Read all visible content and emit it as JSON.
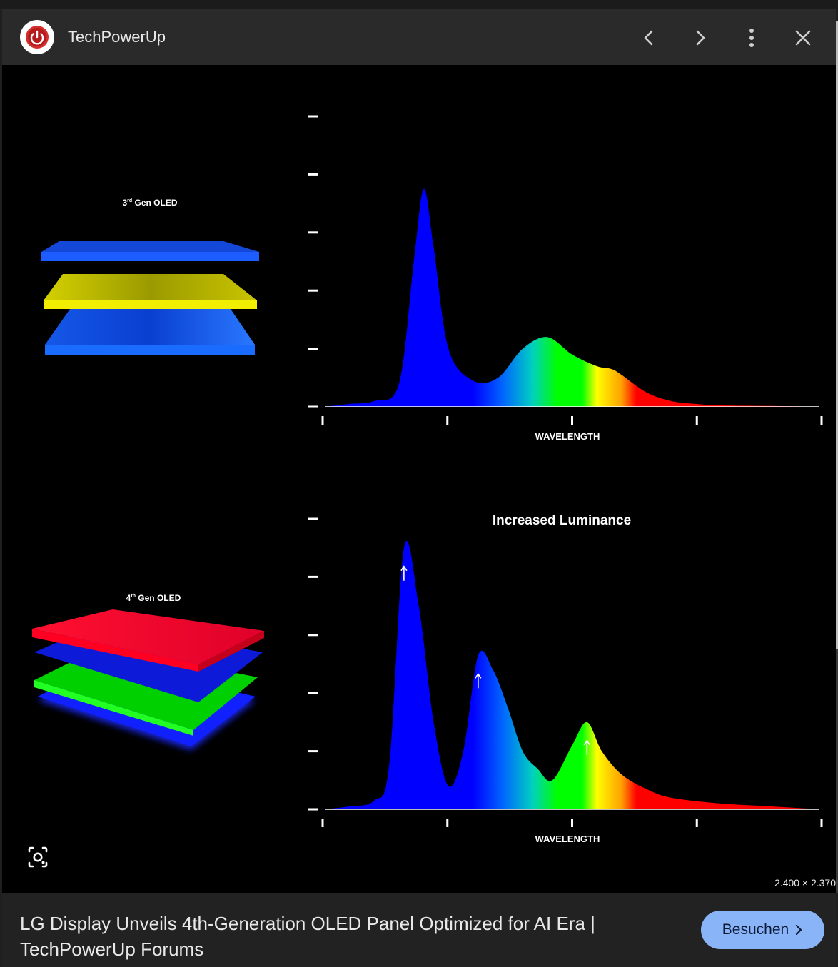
{
  "header": {
    "site_name": "TechPowerUp",
    "icons": {
      "logo": "power-icon",
      "prev": "chevron-left-icon",
      "next": "chevron-right-icon",
      "menu": "more-vert-icon",
      "close": "close-icon"
    }
  },
  "image": {
    "dimensions": "2.400 × 2.370",
    "panels": [
      {
        "label_base": "3",
        "label_sup": "rd",
        "label_rest": " Gen OLED",
        "xlabel": "WAVELENGTH",
        "annotation": ""
      },
      {
        "label_base": "4",
        "label_sup": "th",
        "label_rest": " Gen OLED",
        "xlabel": "WAVELENGTH",
        "annotation": "Increased Luminance"
      }
    ]
  },
  "chart_data": [
    {
      "type": "area",
      "title": "",
      "xlabel": "WAVELENGTH",
      "ylabel": "",
      "x_ticks": 5,
      "y_ticks": 6,
      "description_series": "spectrum",
      "x": [
        0,
        5,
        10,
        15,
        18,
        20,
        22,
        25,
        30,
        35,
        40,
        45,
        50,
        55,
        58,
        60,
        65,
        70,
        75,
        80,
        90,
        100
      ],
      "y": [
        0,
        1,
        2,
        8,
        50,
        75,
        55,
        20,
        9,
        10,
        20,
        24,
        18,
        14,
        13,
        11,
        5,
        2,
        1,
        0.5,
        0.3,
        0
      ],
      "ylim": [
        0,
        100
      ]
    },
    {
      "type": "area",
      "title": "",
      "xlabel": "WAVELENGTH",
      "ylabel": "",
      "annotation": "Increased Luminance",
      "x_ticks": 5,
      "y_ticks": 6,
      "x": [
        0,
        5,
        10,
        13,
        16,
        19,
        22,
        25,
        28,
        31,
        34,
        37,
        40,
        43,
        46,
        50,
        53,
        56,
        60,
        65,
        70,
        80,
        90,
        100
      ],
      "y": [
        0,
        1,
        3,
        15,
        90,
        70,
        30,
        8,
        20,
        53,
        48,
        35,
        20,
        14,
        10,
        22,
        30,
        20,
        12,
        7,
        4,
        2,
        1,
        0
      ],
      "ylim": [
        0,
        100
      ]
    }
  ],
  "footer": {
    "caption": "LG Display Unveils 4th-Generation OLED Panel Optimized for AI Era | TechPowerUp Forums",
    "visit_label": "Besuchen"
  },
  "colors": {
    "accent_button": "#8ab4f8",
    "logo_red": "#d32f2f",
    "header_bg": "#2a2a2a"
  }
}
